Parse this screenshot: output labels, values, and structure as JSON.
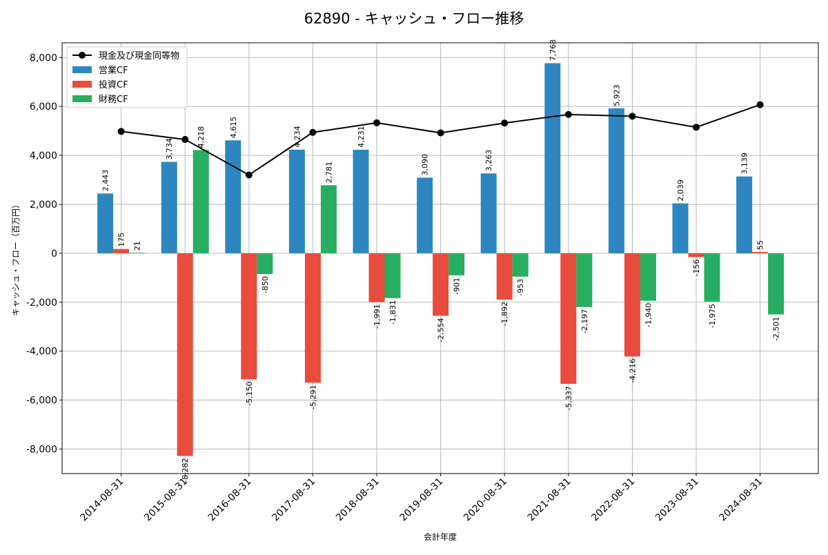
{
  "chart_data": {
    "type": "bar",
    "title": "62890 - キャッシュ・フロー推移",
    "xlabel": "会計年度",
    "ylabel": "キャッシュ・フロー（百万円）",
    "ylim": [
      -9000,
      8600
    ],
    "yticks": [
      8000,
      6000,
      4000,
      2000,
      0,
      -2000,
      -4000,
      -6000,
      -8000
    ],
    "ytick_labels": [
      "8,000",
      "6,000",
      "4,000",
      "2,000",
      "0",
      "-2,000",
      "-4,000",
      "-6,000",
      "-8,000"
    ],
    "grid": true,
    "legend_position": "top-left",
    "categories": [
      "2014-08-31",
      "2015-08-31",
      "2016-08-31",
      "2017-08-31",
      "2018-08-31",
      "2019-08-31",
      "2020-08-31",
      "2021-08-31",
      "2022-08-31",
      "2023-08-31",
      "2024-08-31"
    ],
    "series": [
      {
        "name": "営業CF",
        "kind": "bar",
        "color": "#2e86c1",
        "values": [
          2443,
          3734,
          4615,
          4234,
          4231,
          3090,
          3263,
          7768,
          5923,
          2039,
          3139
        ]
      },
      {
        "name": "投資CF",
        "kind": "bar",
        "color": "#e74c3c",
        "values": [
          175,
          -8282,
          -5150,
          -5291,
          -1991,
          -2554,
          -1892,
          -5337,
          -4216,
          -156,
          55
        ]
      },
      {
        "name": "財務CF",
        "kind": "bar",
        "color": "#27ae60",
        "values": [
          21,
          4218,
          -850,
          2781,
          -1831,
          -901,
          -953,
          -2197,
          -1940,
          -1975,
          -2501
        ]
      },
      {
        "name": "現金及び現金同等物",
        "kind": "line",
        "color": "#000000",
        "values": [
          4980,
          4650,
          3200,
          4940,
          5330,
          4920,
          5320,
          5670,
          5600,
          5150,
          6070
        ]
      }
    ]
  }
}
